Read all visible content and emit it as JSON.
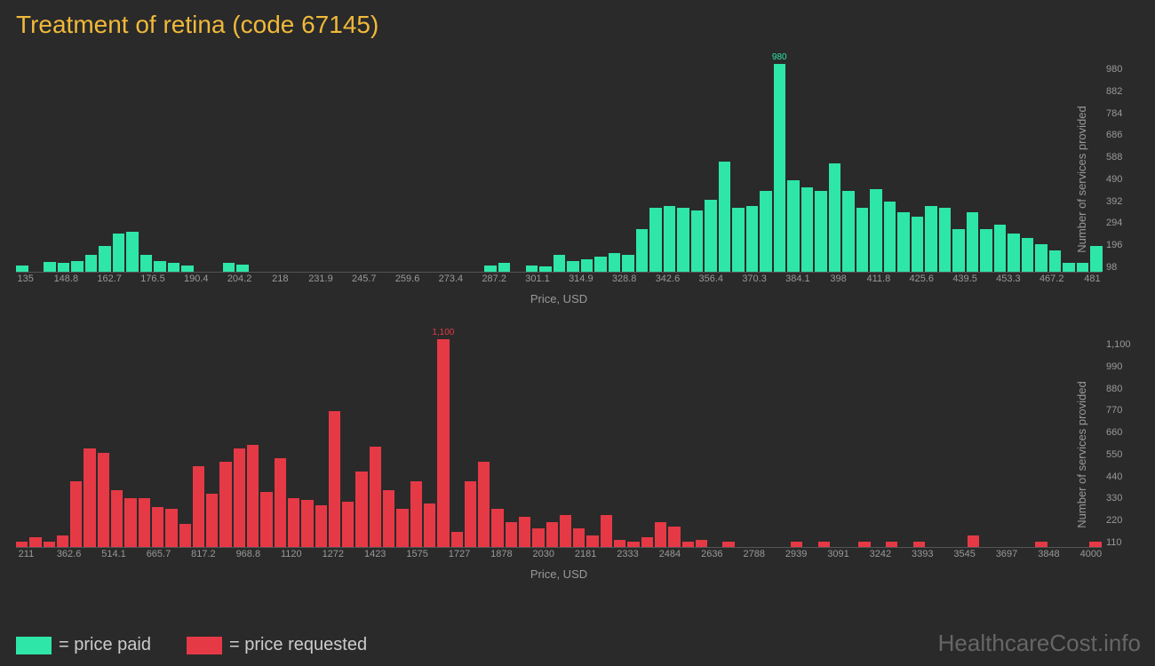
{
  "title": "Treatment of retina (code 67145)",
  "watermark": "HealthcareCost.info",
  "legend": [
    {
      "color": "#2ee6a8",
      "label": "= price paid"
    },
    {
      "color": "#e63946",
      "label": "= price requested"
    }
  ],
  "chart_top": {
    "type": "histogram",
    "bar_color": "#2ee6a8",
    "peak_label_color": "#2ee6a8",
    "background": "#2a2a2a",
    "x_label": "Price, USD",
    "y_label": "Number of services provided",
    "y_max": 980,
    "y_ticks": [
      "98",
      "196",
      "294",
      "392",
      "490",
      "588",
      "686",
      "784",
      "882",
      "980"
    ],
    "x_ticks": [
      "135",
      "",
      "148.8",
      "",
      "162.7",
      "",
      "176.5",
      "",
      "190.4",
      "",
      "204.2",
      "",
      "218",
      "",
      "231.9",
      "",
      "245.7",
      "",
      "259.6",
      "",
      "273.4",
      "",
      "287.2",
      "",
      "301.1",
      "",
      "314.9",
      "",
      "328.8",
      "",
      "342.6",
      "",
      "356.4",
      "",
      "370.3",
      "",
      "384.1",
      "",
      "398",
      "",
      "411.8",
      "",
      "425.6",
      "",
      "439.5",
      "",
      "453.3",
      "",
      "467.2",
      "",
      "481"
    ],
    "values": [
      30,
      0,
      45,
      40,
      50,
      80,
      120,
      180,
      190,
      80,
      50,
      40,
      30,
      0,
      0,
      40,
      35,
      0,
      0,
      0,
      0,
      0,
      0,
      0,
      0,
      0,
      0,
      0,
      0,
      0,
      0,
      0,
      0,
      0,
      30,
      40,
      0,
      30,
      25,
      80,
      50,
      60,
      70,
      90,
      80,
      200,
      300,
      310,
      300,
      290,
      340,
      520,
      300,
      310,
      380,
      980,
      430,
      400,
      380,
      510,
      380,
      300,
      390,
      330,
      280,
      260,
      310,
      300,
      200,
      280,
      200,
      220,
      180,
      160,
      130,
      100,
      40,
      40,
      120
    ],
    "peak_index": 55,
    "peak_label": "980"
  },
  "chart_bottom": {
    "type": "histogram",
    "bar_color": "#e63946",
    "peak_label_color": "#e63946",
    "background": "#2a2a2a",
    "x_label": "Price, USD",
    "y_label": "Number of services provided",
    "y_max": 1100,
    "y_ticks": [
      "110",
      "220",
      "330",
      "440",
      "550",
      "660",
      "770",
      "880",
      "990",
      "1,100"
    ],
    "x_ticks": [
      "211",
      "",
      "362.6",
      "",
      "514.1",
      "",
      "665.7",
      "",
      "817.2",
      "",
      "968.8",
      "",
      "1120",
      "",
      "1272",
      "",
      "1423",
      "",
      "1575",
      "",
      "1727",
      "",
      "1878",
      "",
      "2030",
      "",
      "2181",
      "",
      "2333",
      "",
      "2484",
      "",
      "2636",
      "",
      "2788",
      "",
      "2939",
      "",
      "3091",
      "",
      "3242",
      "",
      "3393",
      "",
      "3545",
      "",
      "3697",
      "",
      "3848",
      "",
      "4000"
    ],
    "values": [
      30,
      50,
      30,
      60,
      350,
      520,
      500,
      300,
      260,
      260,
      210,
      200,
      120,
      430,
      280,
      450,
      520,
      540,
      290,
      470,
      260,
      250,
      220,
      720,
      240,
      400,
      530,
      300,
      200,
      350,
      230,
      1100,
      80,
      350,
      450,
      200,
      130,
      160,
      100,
      130,
      170,
      100,
      60,
      170,
      40,
      30,
      50,
      130,
      110,
      30,
      40,
      0,
      30,
      0,
      0,
      0,
      0,
      30,
      0,
      30,
      0,
      0,
      30,
      0,
      30,
      0,
      30,
      0,
      0,
      0,
      60,
      0,
      0,
      0,
      0,
      30,
      0,
      0,
      0,
      30
    ],
    "peak_index": 31,
    "peak_label": "1,100"
  }
}
